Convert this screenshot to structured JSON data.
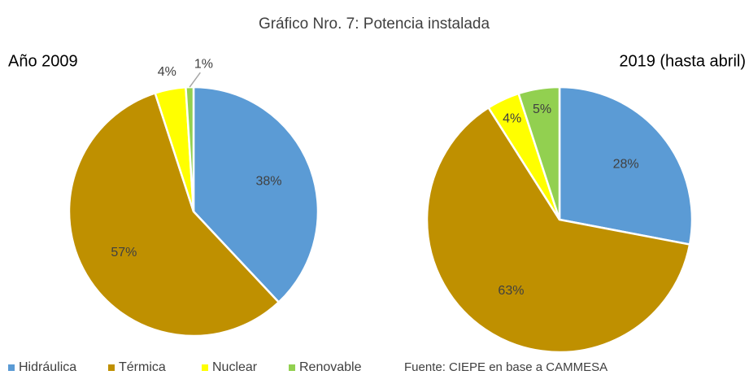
{
  "title": "Gráfico Nro. 7: Potencia instalada",
  "source": "Fuente: CIEPE en base a CAMMESA",
  "legend": {
    "categories": [
      "Hidráulica",
      "Térmica",
      "Nuclear",
      "Renovable"
    ],
    "colors": [
      "#5b9bd5",
      "#bf9000",
      "#ffff00",
      "#92d050"
    ]
  },
  "chart_data": [
    {
      "type": "pie",
      "title": "Año 2009",
      "values": [
        38,
        57,
        4,
        1
      ],
      "value_labels": [
        "38%",
        "57%",
        "4%",
        "1%"
      ]
    },
    {
      "type": "pie",
      "title": "2019 (hasta abril)",
      "values": [
        28,
        63,
        4,
        5
      ],
      "value_labels": [
        "28%",
        "63%",
        "4%",
        "5%"
      ]
    }
  ]
}
